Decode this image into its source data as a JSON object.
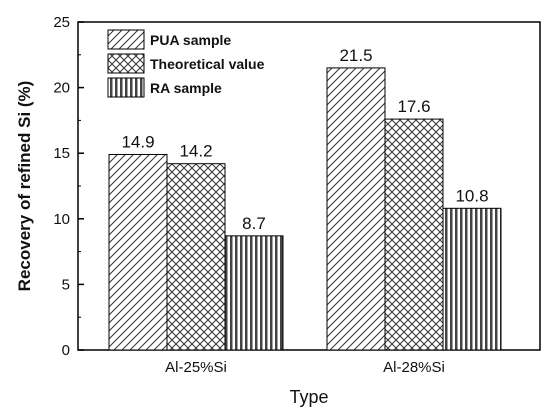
{
  "chart_data": {
    "type": "bar",
    "categories": [
      "Al-25%Si",
      "Al-28%Si"
    ],
    "series": [
      {
        "name": "PUA sample",
        "values": [
          14.9,
          21.5
        ],
        "pattern": "diagonal-hatch"
      },
      {
        "name": "Theoretical value",
        "values": [
          14.2,
          17.6
        ],
        "pattern": "cross-hatch"
      },
      {
        "name": "RA sample",
        "values": [
          8.7,
          10.8
        ],
        "pattern": "vertical-lines"
      }
    ],
    "data_labels": [
      [
        "14.9",
        "21.5"
      ],
      [
        "14.2",
        "17.6"
      ],
      [
        "8.7",
        "10.8"
      ]
    ],
    "xlabel": "Type",
    "ylabel": "Recovery of refined Si (%)",
    "ylim": [
      0,
      25
    ],
    "yticks": [
      0,
      5,
      10,
      15,
      20,
      25
    ],
    "ytick_labels": [
      "0",
      "5",
      "10",
      "15",
      "20",
      "25"
    ],
    "grid": false,
    "legend_position": "top-left",
    "colors": {
      "axis": "#000000",
      "bar_fill": "#ffffff",
      "hatch": "#333333"
    }
  }
}
